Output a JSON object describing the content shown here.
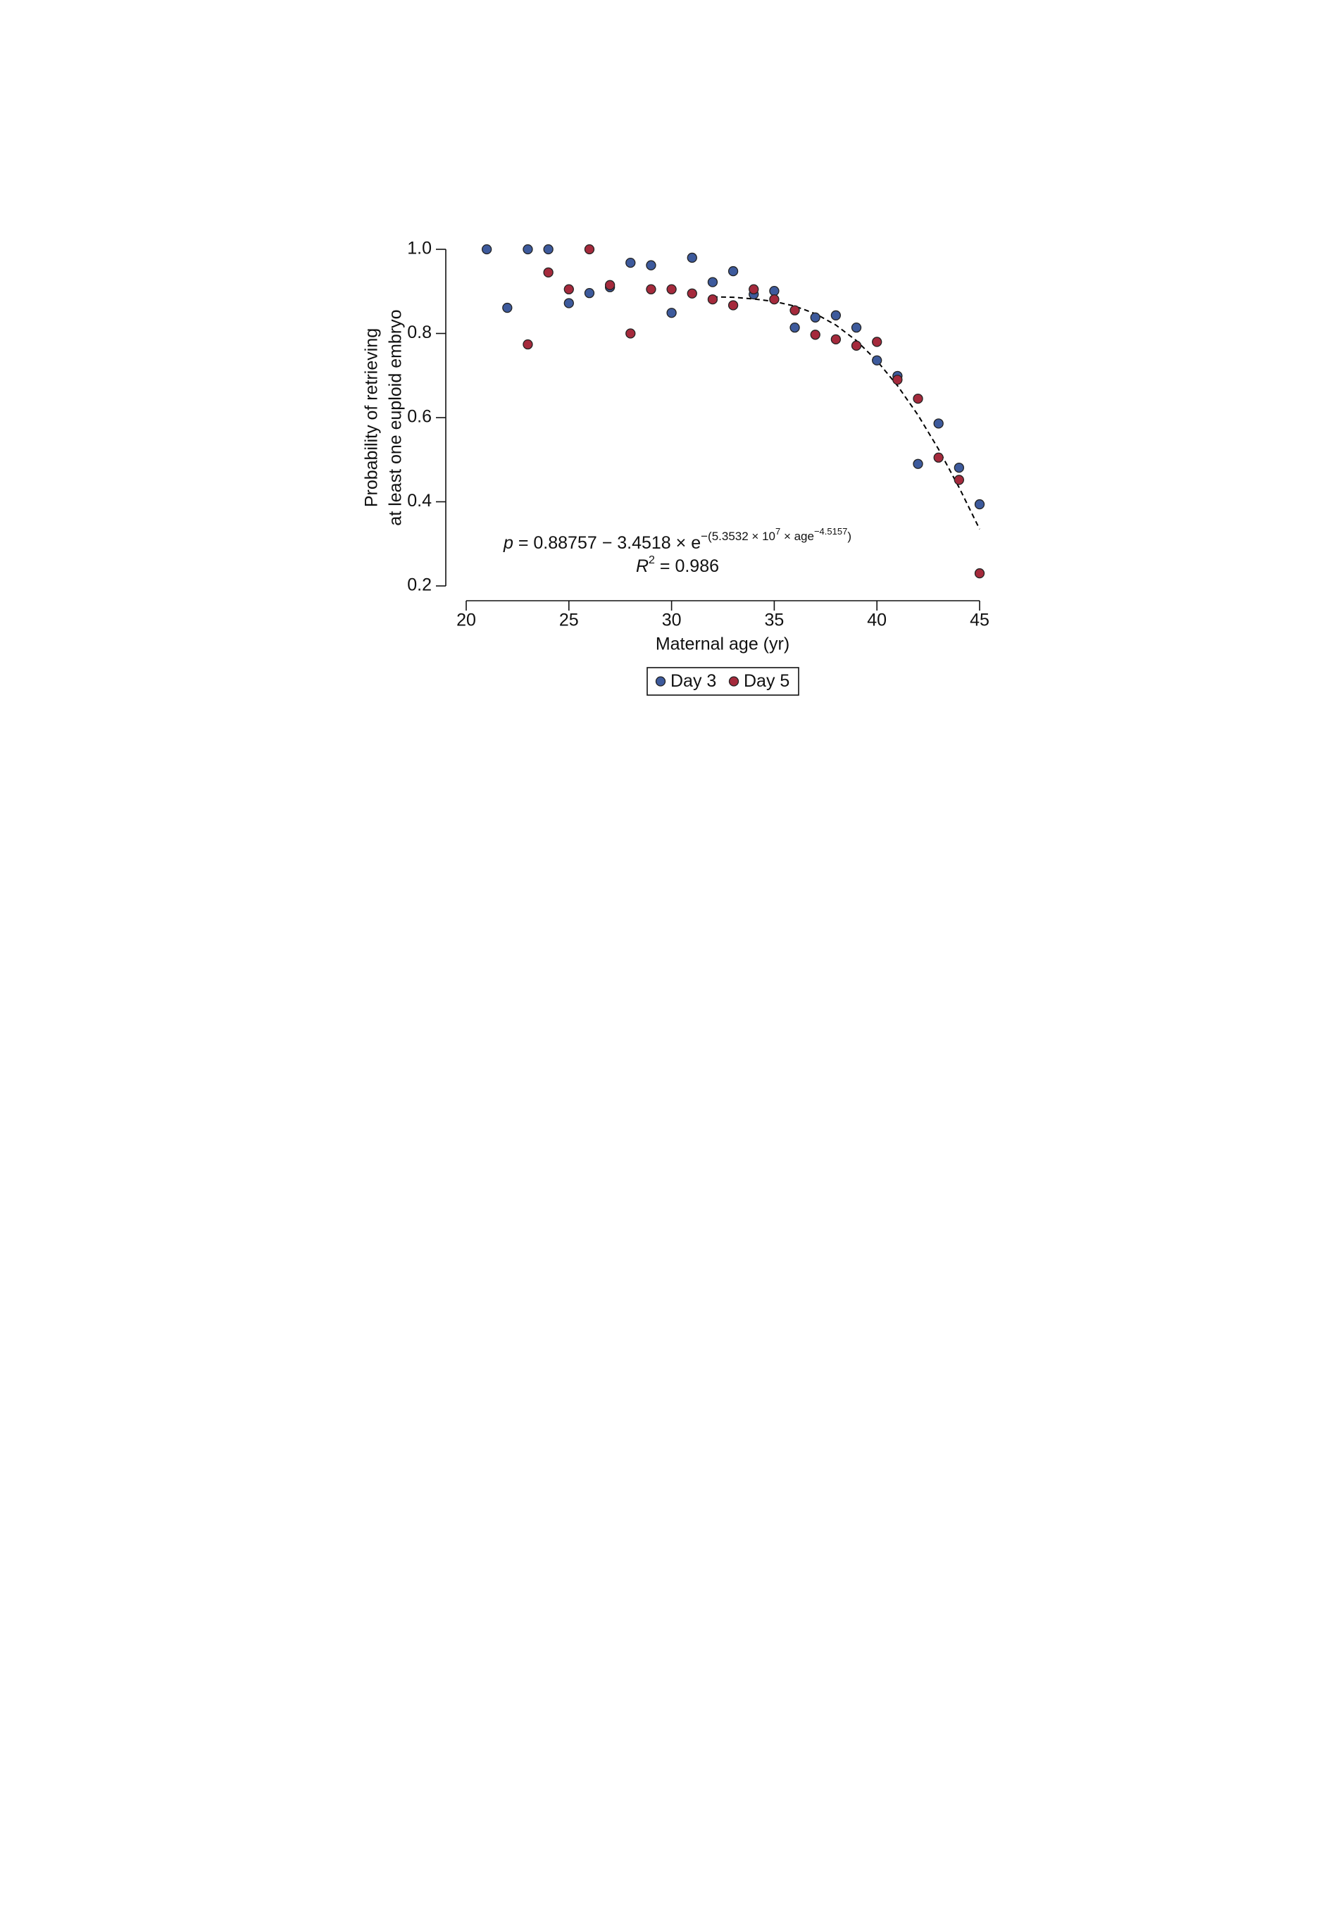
{
  "chart_data": {
    "type": "scatter",
    "x_label": "Maternal age (yr)",
    "y_label": [
      "Probability of retrieving",
      "at least one euploid embryo"
    ],
    "xlim": [
      20,
      45
    ],
    "xticks": [
      20,
      25,
      30,
      35,
      40,
      45
    ],
    "ylim": [
      0.2,
      1.0
    ],
    "yticks": [
      {
        "value": 0.2,
        "label": "0.2"
      },
      {
        "value": 0.4,
        "label": "0.4"
      },
      {
        "value": 0.6,
        "label": "0.6"
      },
      {
        "value": 0.8,
        "label": "0.8"
      },
      {
        "value": 1.0,
        "label": "1.0"
      }
    ],
    "legend_position": "bottom",
    "series": [
      {
        "name": "Day 3",
        "color": "#3d5a9c",
        "x": [
          21,
          22,
          23,
          24,
          25,
          26,
          27,
          28,
          29,
          30,
          31,
          32,
          33,
          34,
          35,
          36,
          37,
          38,
          39,
          40,
          41,
          42,
          43,
          44,
          45
        ],
        "values": [
          1.0,
          0.861,
          1.0,
          1.0,
          0.872,
          0.896,
          0.91,
          0.968,
          0.962,
          0.849,
          0.98,
          0.922,
          0.948,
          0.893,
          0.901,
          0.814,
          0.838,
          0.843,
          0.814,
          0.736,
          0.699,
          0.49,
          0.586,
          0.481,
          0.394
        ]
      },
      {
        "name": "Day 5",
        "color": "#a52a3c",
        "x": [
          23,
          24,
          25,
          26,
          27,
          28,
          29,
          30,
          31,
          32,
          33,
          34,
          35,
          36,
          37,
          38,
          39,
          40,
          41,
          42,
          43,
          44,
          45
        ],
        "values": [
          0.774,
          0.945,
          0.905,
          1.0,
          0.915,
          0.8,
          0.905,
          0.905,
          0.895,
          0.881,
          0.867,
          0.905,
          0.881,
          0.855,
          0.797,
          0.786,
          0.771,
          0.78,
          0.69,
          0.645,
          0.505,
          0.452,
          0.23
        ]
      }
    ],
    "fit": {
      "color": "#000000",
      "dashed": true,
      "x": [
        32,
        33,
        34,
        35,
        36,
        37,
        38,
        39,
        40,
        41,
        42,
        43,
        44,
        45
      ],
      "values": [
        0.887,
        0.886,
        0.882,
        0.876,
        0.865,
        0.847,
        0.82,
        0.783,
        0.735,
        0.676,
        0.606,
        0.525,
        0.434,
        0.335
      ]
    },
    "annotation": {
      "equation": [
        "p",
        " = 0.88757 − 3.4518 × e",
        "−(5.3532 × 10",
        "7",
        " × age",
        "−4.5157",
        ")"
      ],
      "r_squared": [
        "R",
        "2",
        " = 0.986"
      ]
    }
  }
}
